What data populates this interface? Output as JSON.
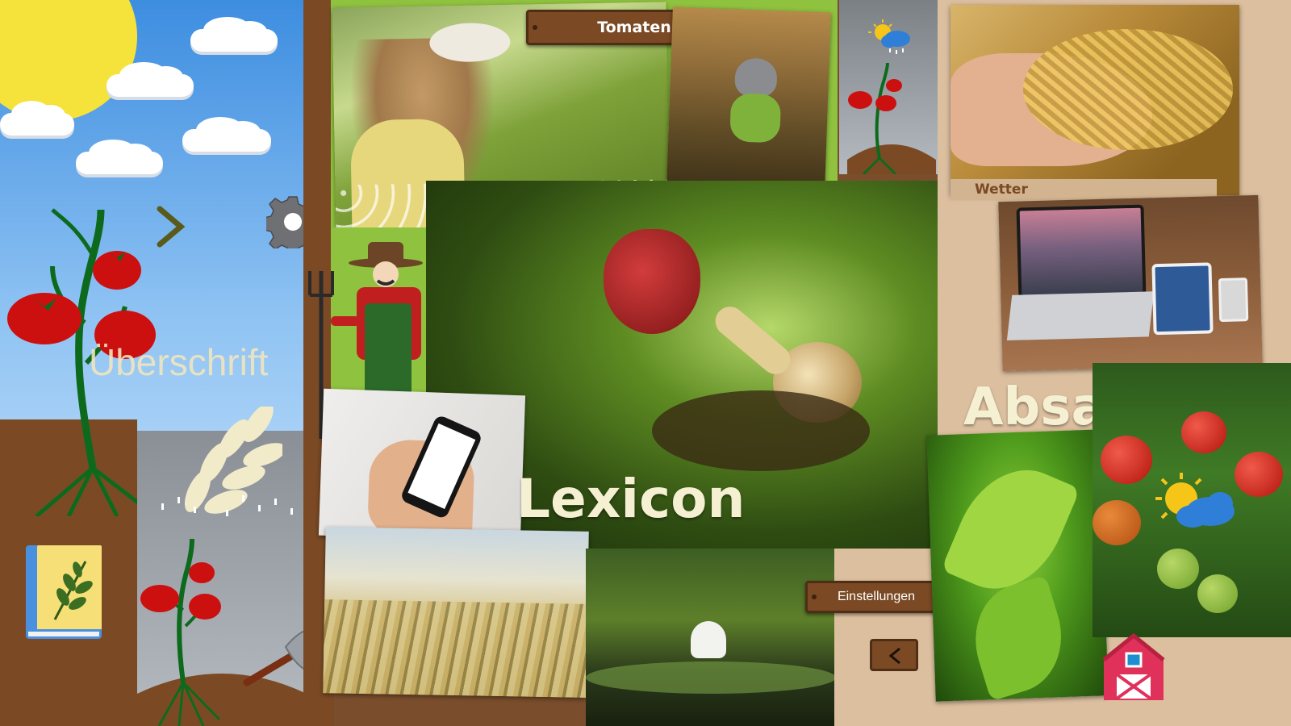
{
  "labels": {
    "tomaten": "Tomaten",
    "wetter": "Wetter",
    "einstellungen": "Einstellungen",
    "ueberschrift": "Überschrift",
    "lexicon": "Lexicon",
    "absatz": "Absatz"
  },
  "icons": {
    "next": "chevron-right-icon",
    "back": "chevron-left-icon",
    "settings": "gear-icon",
    "book": "book-icon",
    "barn": "barn-icon",
    "weather": "sun-cloud-rain-icon",
    "shovel": "shovel-icon"
  },
  "colors": {
    "wood": "#7b4a25",
    "wood_dark": "#4e2e15",
    "cream_text": "#f6f0d2",
    "tomato_red": "#cc1010",
    "plant_green": "#0d6a1c"
  }
}
